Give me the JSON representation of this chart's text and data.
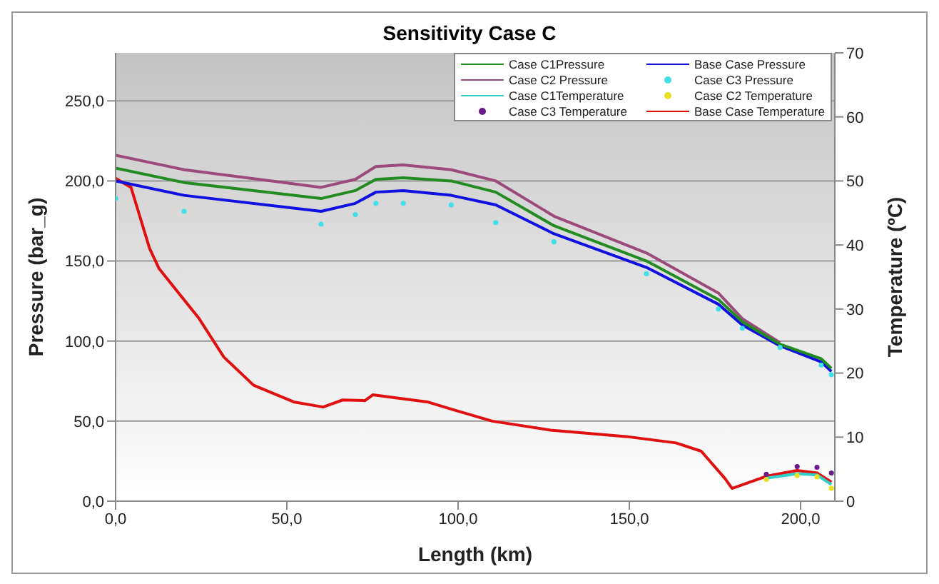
{
  "chart_data": {
    "type": "line",
    "title": "Sensitivity Case C",
    "xlabel": "Length (km)",
    "ylabel": "Pressure (bar_g)",
    "y2label": "Temperature (ºC)",
    "xlim": [
      0,
      210
    ],
    "xticks": [
      {
        "value": 0,
        "label": "0,0"
      },
      {
        "value": 50,
        "label": "50,0"
      },
      {
        "value": 100,
        "label": "100,0"
      },
      {
        "value": 150,
        "label": "150,0"
      },
      {
        "value": 200,
        "label": "200,0"
      }
    ],
    "ylim": [
      0,
      280
    ],
    "yticks": [
      {
        "value": 0,
        "label": "0,0"
      },
      {
        "value": 50,
        "label": "50,0"
      },
      {
        "value": 100,
        "label": "100,0"
      },
      {
        "value": 150,
        "label": "150,0"
      },
      {
        "value": 200,
        "label": "200,0"
      },
      {
        "value": 250,
        "label": "250,0"
      }
    ],
    "y2lim": [
      0,
      70
    ],
    "y2ticks": [
      0,
      10,
      20,
      30,
      40,
      50,
      60,
      70
    ],
    "grid": "y",
    "legend": "top right",
    "series": [
      {
        "name": "Case C1Pressure",
        "color": "#228b22",
        "x": [
          0,
          20,
          60,
          70,
          76,
          84,
          98,
          111,
          128,
          155,
          176,
          183,
          194,
          206,
          209
        ],
        "values": [
          208,
          199,
          189,
          194,
          201,
          202,
          200,
          193,
          172,
          150,
          126,
          112,
          98,
          89,
          83
        ]
      },
      {
        "name": "Base Case Pressure",
        "color": "#1010e0",
        "x": [
          0,
          20,
          60,
          70,
          76,
          84,
          98,
          111,
          128,
          155,
          176,
          183,
          194,
          206,
          209
        ],
        "values": [
          200,
          191,
          181,
          186,
          193,
          194,
          191,
          185,
          167,
          146,
          123,
          110,
          97,
          87,
          81
        ]
      },
      {
        "name": "Case C2 Pressure",
        "color": "#9b4a7a",
        "x": [
          0,
          20,
          60,
          70,
          76,
          84,
          98,
          111,
          128,
          155,
          176,
          183,
          194
        ],
        "values": [
          216,
          207,
          196,
          201,
          209,
          210,
          207,
          200,
          178,
          155,
          130,
          114,
          99
        ]
      },
      {
        "name": "Case C3 Pressure",
        "color": "#40e0e8",
        "type": "scatter",
        "x": [
          0,
          20,
          60,
          70,
          76,
          84,
          98,
          111,
          128,
          155,
          176,
          183,
          194,
          206,
          209
        ],
        "values": [
          189,
          181,
          173,
          179,
          186,
          186,
          185,
          174,
          162,
          142,
          120,
          108,
          96,
          85,
          79
        ]
      },
      {
        "name": "Case C1Temperature",
        "color": "#30d0c8",
        "axis": "y2",
        "x": [
          190,
          199,
          204.8,
          209
        ],
        "values": [
          3.6,
          4.3,
          4.1,
          2.6
        ]
      },
      {
        "name": "Case C2 Temperature",
        "color": "#e8e020",
        "type": "scatter",
        "axis": "y2",
        "x": [
          190,
          199,
          204.8,
          209
        ],
        "values": [
          3.4,
          4,
          3.8,
          2
        ]
      },
      {
        "name": "Case C3 Temperature",
        "color": "#6a1a8a",
        "type": "scatter",
        "axis": "y2",
        "x": [
          190,
          199,
          204.8,
          209
        ],
        "values": [
          4.2,
          5.4,
          5.3,
          4.4
        ]
      },
      {
        "name": "Base Case Temperature",
        "color": "#e01010",
        "axis": "y2",
        "x": [
          0,
          4.5,
          9.9,
          12.7,
          24.4,
          31.6,
          40.3,
          52,
          60.6,
          66.3,
          72.8,
          75.1,
          91,
          98.4,
          110,
          127,
          149,
          163.6,
          171,
          178,
          180,
          190,
          199,
          204.8,
          209
        ],
        "values": [
          50.4,
          49,
          39.5,
          36.3,
          28.5,
          22.5,
          18.1,
          15.5,
          14.7,
          15.8,
          15.7,
          16.6,
          15.5,
          14.3,
          12.5,
          11.1,
          10.1,
          9.1,
          7.8,
          3.5,
          2,
          3.9,
          4.8,
          4.4,
          3
        ]
      }
    ]
  }
}
